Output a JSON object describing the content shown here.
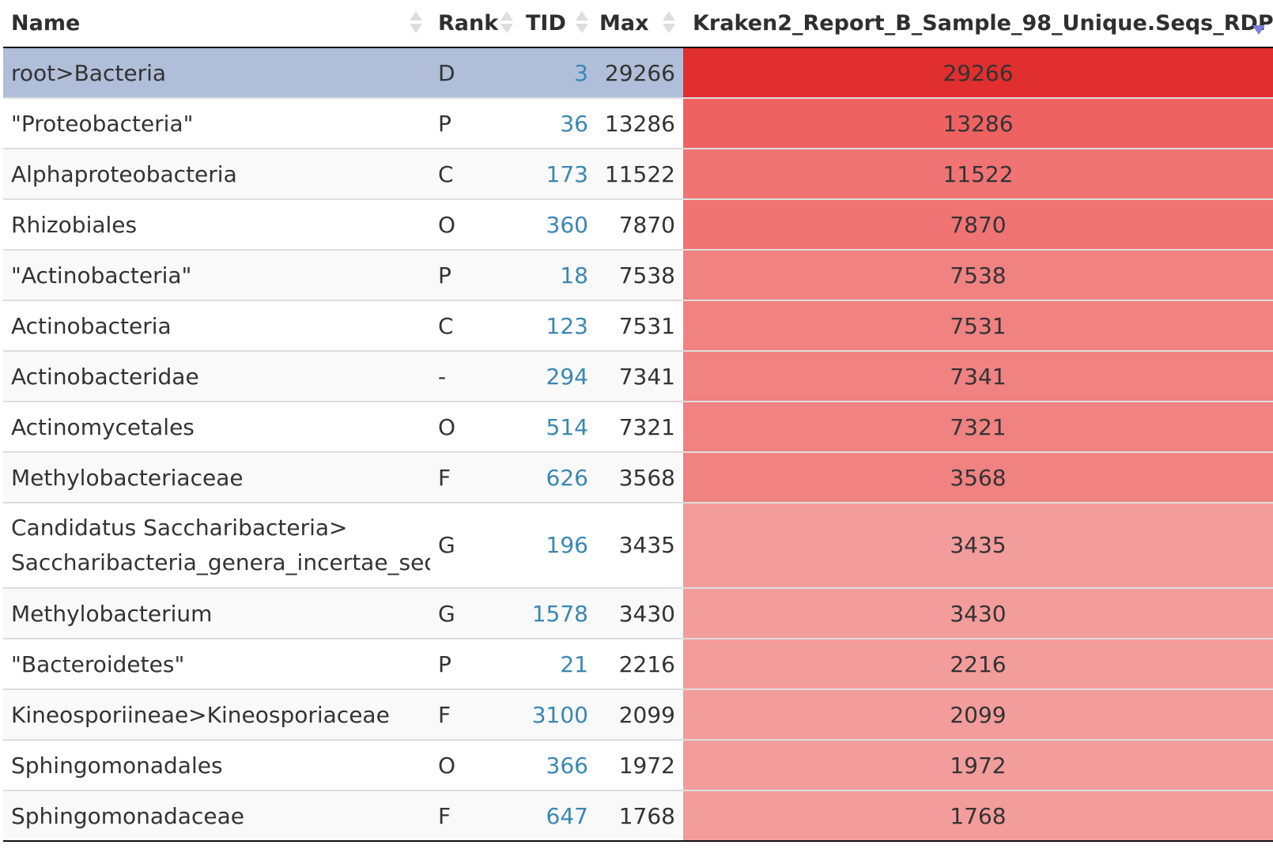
{
  "header": {
    "name": "Name",
    "rank": "Rank",
    "tid": "TID",
    "max": "Max",
    "sample": "Kraken2_Report_B_Sample_98_Unique.Seqs_RDP"
  },
  "sort": {
    "column": "sample",
    "direction": "descending"
  },
  "heat_colors": {
    "darkest": "#e12e2e",
    "dark": "#ef6262",
    "mid": "#f07474",
    "mid2": "#f08282",
    "light": "#f39c9c"
  },
  "rows": [
    {
      "name": "root>Bacteria",
      "rank": "D",
      "tid": "3",
      "max": "29266",
      "value": "29266",
      "selected": true,
      "heat": "#e12e2e"
    },
    {
      "name": "\"Proteobacteria\"",
      "rank": "P",
      "tid": "36",
      "max": "13286",
      "value": "13286",
      "heat": "#ef6262"
    },
    {
      "name": "Alphaproteobacteria",
      "rank": "C",
      "tid": "173",
      "max": "11522",
      "value": "11522",
      "heat": "#f07474"
    },
    {
      "name": "Rhizobiales",
      "rank": "O",
      "tid": "360",
      "max": "7870",
      "value": "7870",
      "heat": "#f07474"
    },
    {
      "name": "\"Actinobacteria\"",
      "rank": "P",
      "tid": "18",
      "max": "7538",
      "value": "7538",
      "heat": "#f08282"
    },
    {
      "name": "Actinobacteria",
      "rank": "C",
      "tid": "123",
      "max": "7531",
      "value": "7531",
      "heat": "#f08282"
    },
    {
      "name": "Actinobacteridae",
      "rank": "-",
      "tid": "294",
      "max": "7341",
      "value": "7341",
      "heat": "#f08282"
    },
    {
      "name": "Actinomycetales",
      "rank": "O",
      "tid": "514",
      "max": "7321",
      "value": "7321",
      "heat": "#f08282"
    },
    {
      "name": "Methylobacteriaceae",
      "rank": "F",
      "tid": "626",
      "max": "3568",
      "value": "3568",
      "heat": "#f08282"
    },
    {
      "name_line1": "Candidatus Saccharibacteria>",
      "name_line2": "Saccharibacteria_genera_incertae_sedis",
      "rank": "G",
      "tid": "196",
      "max": "3435",
      "value": "3435",
      "heat": "#f39c9c",
      "tall": true
    },
    {
      "name": "Methylobacterium",
      "rank": "G",
      "tid": "1578",
      "max": "3430",
      "value": "3430",
      "heat": "#f39c9c"
    },
    {
      "name": "\"Bacteroidetes\"",
      "rank": "P",
      "tid": "21",
      "max": "2216",
      "value": "2216",
      "heat": "#f39c9c"
    },
    {
      "name": "Kineosporiineae>Kineosporiaceae",
      "rank": "F",
      "tid": "3100",
      "max": "2099",
      "value": "2099",
      "heat": "#f39c9c"
    },
    {
      "name": "Sphingomonadales",
      "rank": "O",
      "tid": "366",
      "max": "1972",
      "value": "1972",
      "heat": "#f39c9c"
    },
    {
      "name": "Sphingomonadaceae",
      "rank": "F",
      "tid": "647",
      "max": "1768",
      "value": "1768",
      "heat": "#f39c9c"
    }
  ]
}
